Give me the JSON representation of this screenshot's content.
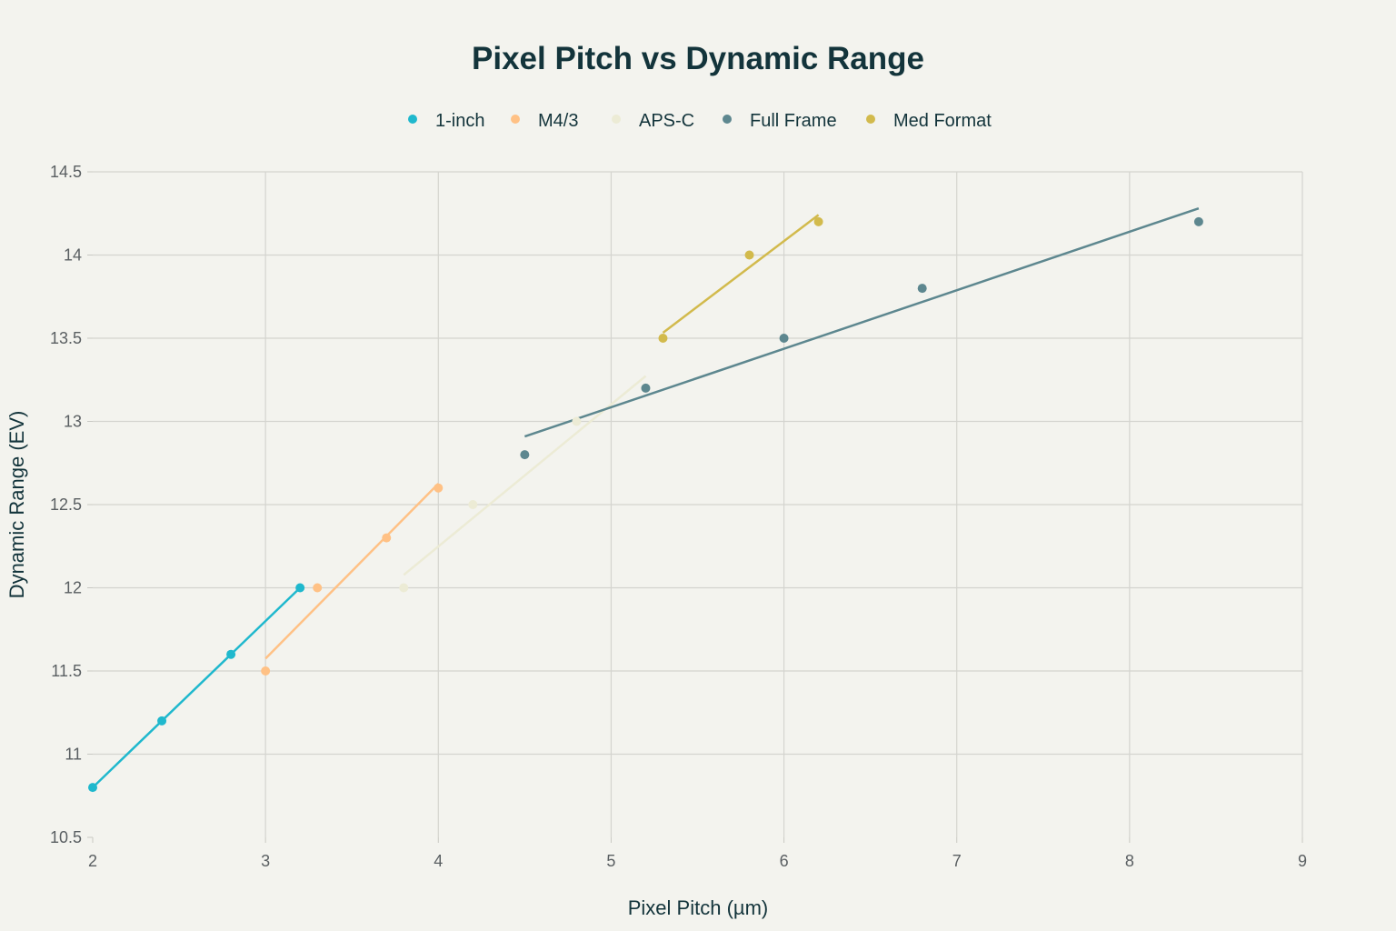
{
  "chart_data": {
    "type": "scatter",
    "title": "Pixel Pitch vs Dynamic Range",
    "xlabel": "Pixel Pitch (µm)",
    "ylabel": "Dynamic Range (EV)",
    "xlim": [
      2,
      9
    ],
    "ylim": [
      10.5,
      14.5
    ],
    "xticks": [
      2,
      3,
      4,
      5,
      6,
      7,
      8,
      9
    ],
    "yticks": [
      10.5,
      11,
      11.5,
      12,
      12.5,
      13,
      13.5,
      14,
      14.5
    ],
    "grid": true,
    "legend_position": "top",
    "trendlines": true,
    "series": [
      {
        "name": "1-inch",
        "color": "#1FB8CD",
        "x": [
          2.0,
          2.4,
          2.8,
          3.2
        ],
        "y": [
          10.8,
          11.2,
          11.6,
          12.0
        ]
      },
      {
        "name": "M4/3",
        "color": "#FFC185",
        "x": [
          3.0,
          3.3,
          3.7,
          4.0
        ],
        "y": [
          11.5,
          12.0,
          12.3,
          12.6
        ]
      },
      {
        "name": "APS-C",
        "color": "#ECEBD5",
        "x": [
          3.8,
          4.2,
          4.8,
          5.2
        ],
        "y": [
          12.0,
          12.5,
          13.0,
          13.2
        ]
      },
      {
        "name": "Full Frame",
        "color": "#5D878F",
        "x": [
          4.5,
          5.2,
          6.0,
          6.8,
          8.4
        ],
        "y": [
          12.8,
          13.2,
          13.5,
          13.8,
          14.2
        ]
      },
      {
        "name": "Med Format",
        "color": "#D2BA4C",
        "x": [
          5.3,
          5.8,
          6.2
        ],
        "y": [
          13.5,
          14.0,
          14.2
        ]
      }
    ]
  }
}
